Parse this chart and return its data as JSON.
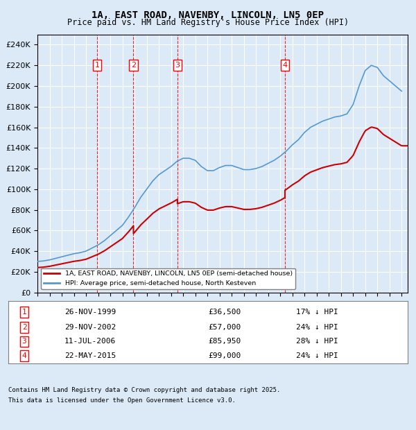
{
  "title": "1A, EAST ROAD, NAVENBY, LINCOLN, LN5 0EP",
  "subtitle": "Price paid vs. HM Land Registry's House Price Index (HPI)",
  "background_color": "#dce9f7",
  "plot_bg_color": "#dce9f7",
  "legend1": "1A, EAST ROAD, NAVENBY, LINCOLN, LN5 0EP (semi-detached house)",
  "legend2": "HPI: Average price, semi-detached house, North Kesteven",
  "footnote_line1": "Contains HM Land Registry data © Crown copyright and database right 2025.",
  "footnote_line2": "This data is licensed under the Open Government Licence v3.0.",
  "red_line_color": "#cc0000",
  "blue_line_color": "#5599cc",
  "transactions": [
    {
      "num": 1,
      "date": "26-NOV-1999",
      "price": 36500,
      "pct": "17%",
      "x": 1999.91
    },
    {
      "num": 2,
      "date": "29-NOV-2002",
      "price": 57000,
      "pct": "24%",
      "x": 2002.91
    },
    {
      "num": 3,
      "date": "11-JUL-2006",
      "price": 85950,
      "pct": "28%",
      "x": 2006.53
    },
    {
      "num": 4,
      "date": "22-MAY-2015",
      "price": 99000,
      "pct": "24%",
      "x": 2015.39
    }
  ],
  "hpi_x": [
    1995.0,
    1995.5,
    1996.0,
    1996.5,
    1997.0,
    1997.5,
    1998.0,
    1998.5,
    1999.0,
    1999.5,
    2000.0,
    2000.5,
    2001.0,
    2001.5,
    2002.0,
    2002.5,
    2003.0,
    2003.5,
    2004.0,
    2004.5,
    2005.0,
    2005.5,
    2006.0,
    2006.5,
    2007.0,
    2007.5,
    2008.0,
    2008.5,
    2009.0,
    2009.5,
    2010.0,
    2010.5,
    2011.0,
    2011.5,
    2012.0,
    2012.5,
    2013.0,
    2013.5,
    2014.0,
    2014.5,
    2015.0,
    2015.5,
    2016.0,
    2016.5,
    2017.0,
    2017.5,
    2018.0,
    2018.5,
    2019.0,
    2019.5,
    2020.0,
    2020.5,
    2021.0,
    2021.5,
    2022.0,
    2022.5,
    2023.0,
    2023.5,
    2024.0,
    2024.5,
    2025.0
  ],
  "hpi_y": [
    30000,
    30500,
    31500,
    33000,
    34500,
    36000,
    37500,
    38500,
    40000,
    43000,
    46000,
    50000,
    55000,
    60000,
    65000,
    73000,
    82000,
    92000,
    100000,
    108000,
    114000,
    118000,
    122000,
    127000,
    130000,
    130000,
    128000,
    122000,
    118000,
    118000,
    121000,
    123000,
    123000,
    121000,
    119000,
    119000,
    120000,
    122000,
    125000,
    128000,
    132000,
    137000,
    143000,
    148000,
    155000,
    160000,
    163000,
    166000,
    168000,
    170000,
    171000,
    173000,
    182000,
    200000,
    215000,
    220000,
    218000,
    210000,
    205000,
    200000,
    195000
  ],
  "ylim": [
    0,
    250000
  ],
  "xlim_start": 1995,
  "xlim_end": 2025.5,
  "marker_y": 220000
}
